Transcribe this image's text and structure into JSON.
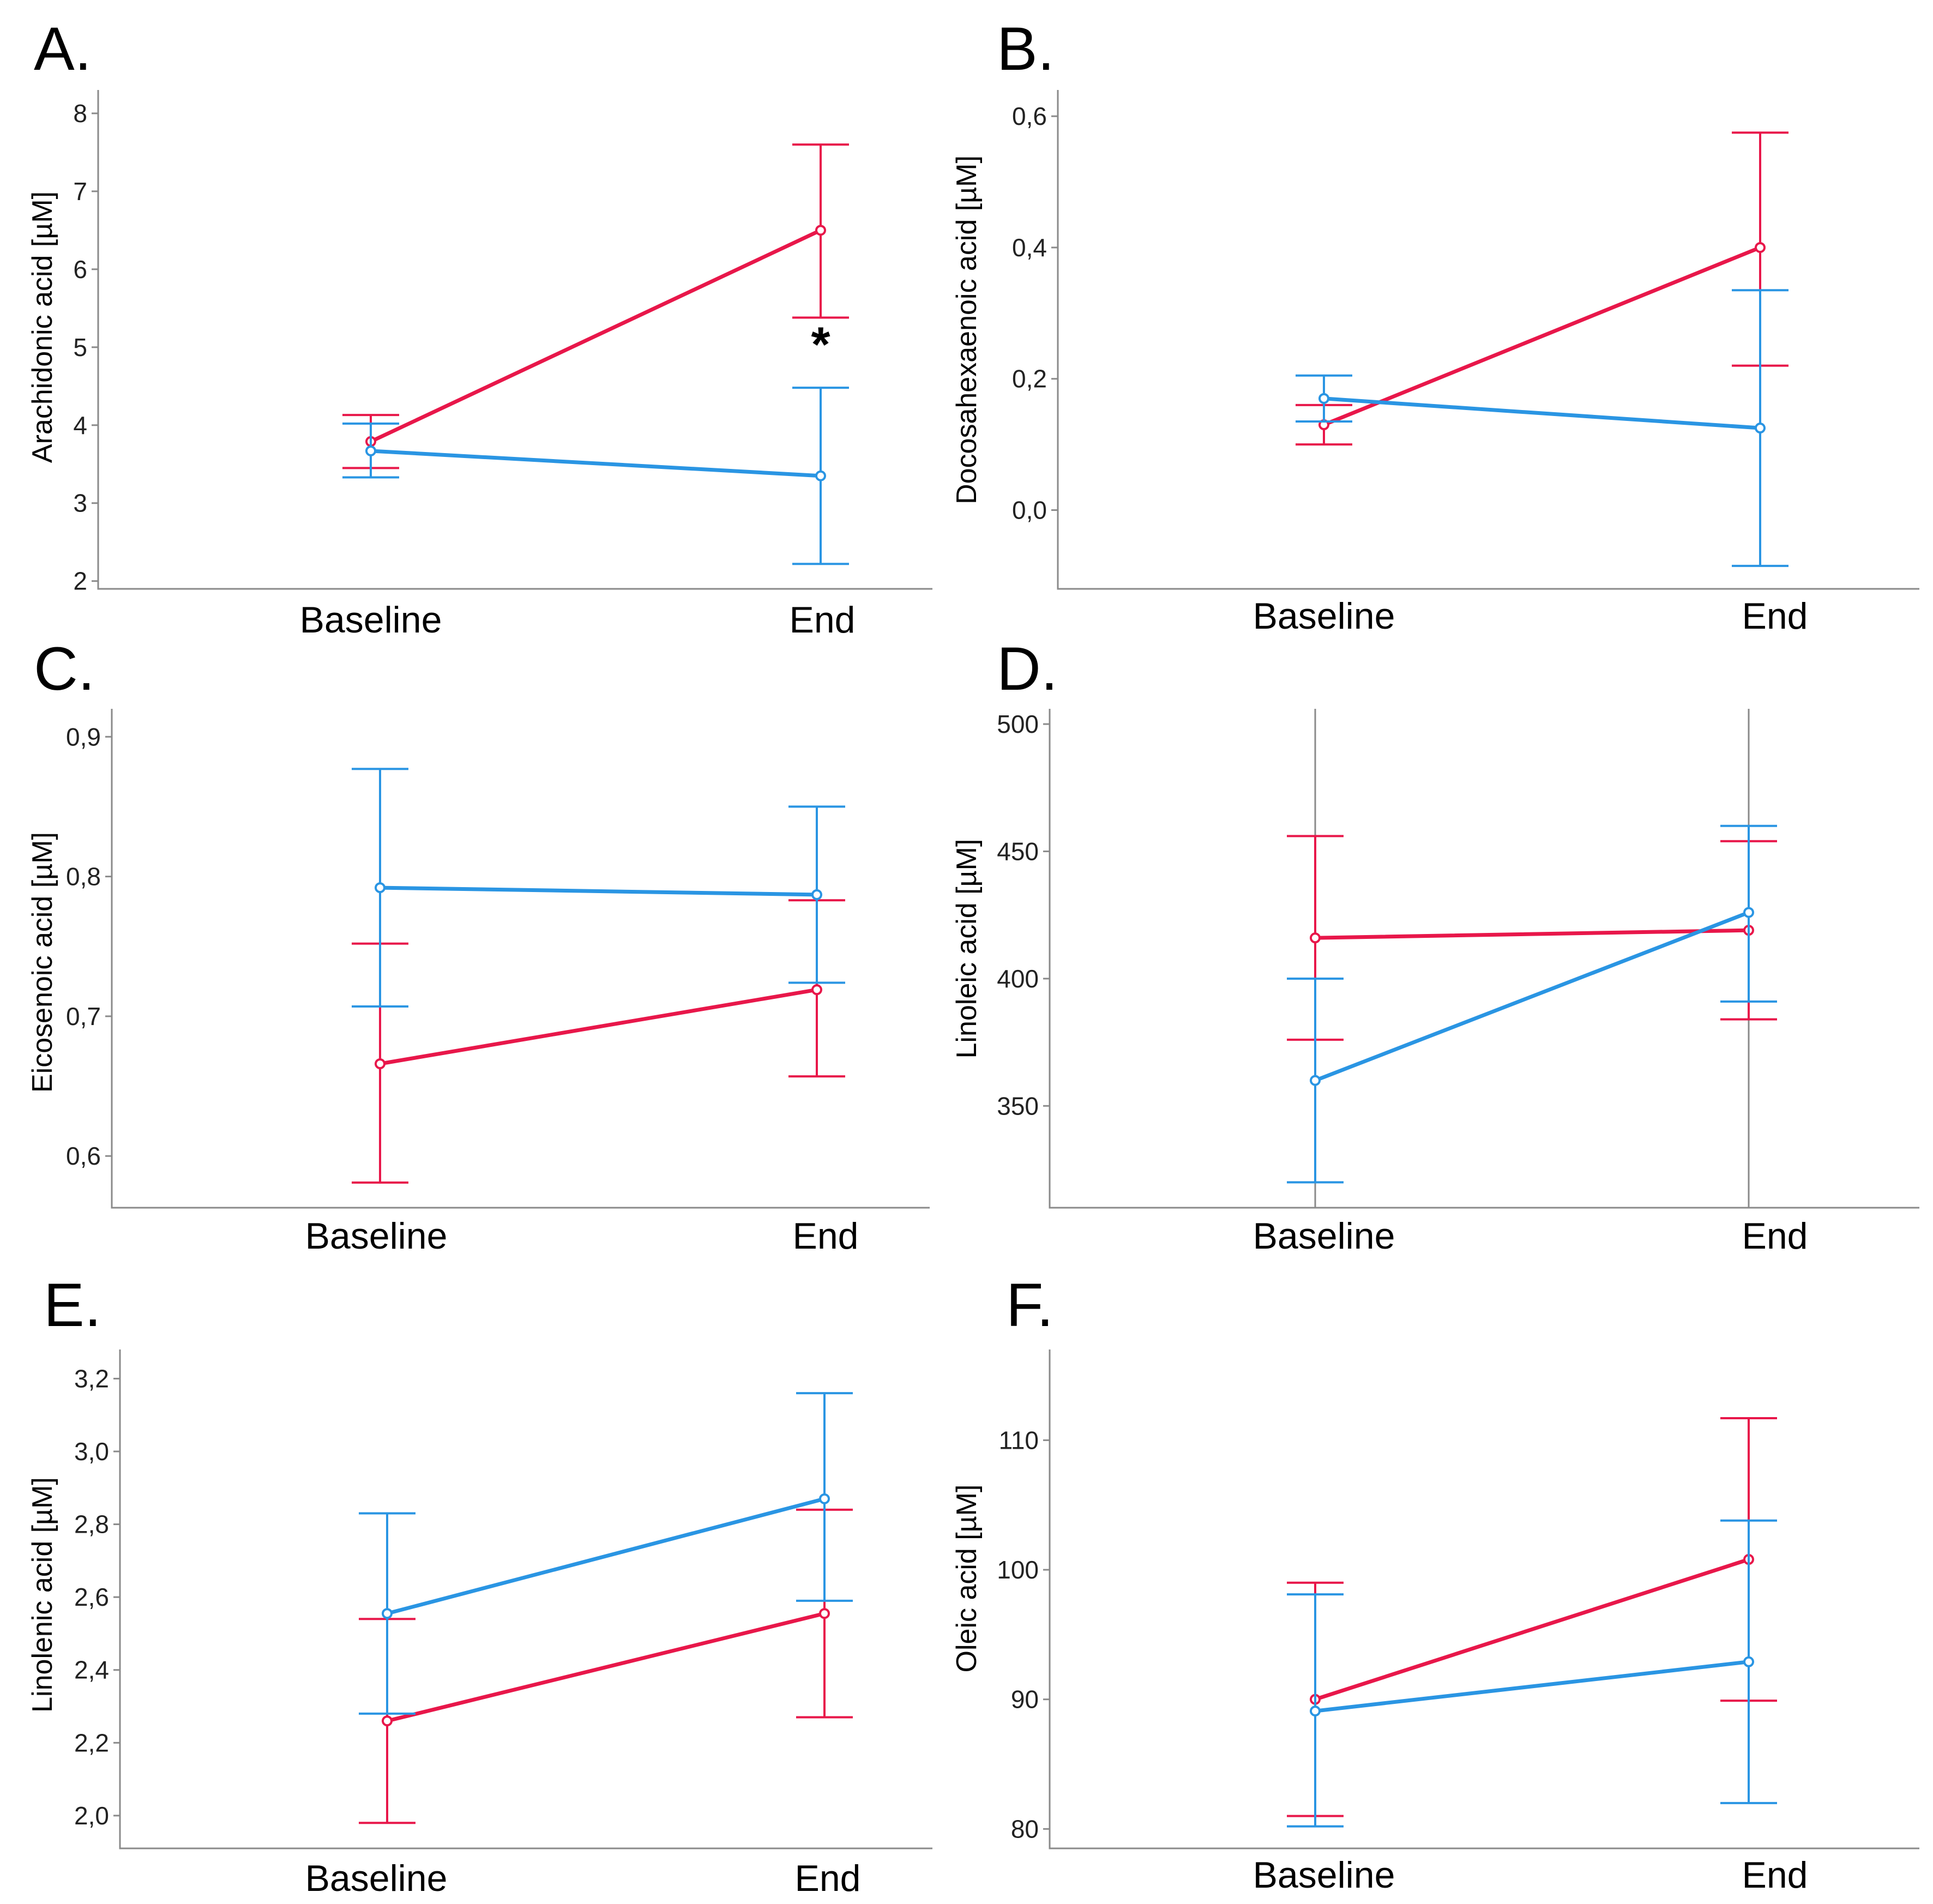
{
  "figure": {
    "colors": {
      "red": "#e8174a",
      "blue": "#2a95e3",
      "axis": "#8a8a8a"
    },
    "series_names": [
      "red-group",
      "blue-group"
    ]
  },
  "chart_data": [
    {
      "panel": "A.",
      "type": "line",
      "ylabel": "Arachidonic acid [µM]",
      "categories": [
        "Baseline",
        "End"
      ],
      "ylim": [
        1.9,
        8.3
      ],
      "yticks": [
        2,
        3,
        4,
        5,
        6,
        7,
        8
      ],
      "ytick_labels": [
        "2",
        "3",
        "4",
        "5",
        "6",
        "7",
        "8"
      ],
      "reference_lines": false,
      "annotation": {
        "text": "*",
        "category": "End",
        "y": 5.1
      },
      "series": [
        {
          "name": "red-group",
          "color": "#e8174a",
          "values": [
            3.79,
            6.5
          ],
          "lower": [
            3.45,
            5.38
          ],
          "upper": [
            4.13,
            7.6
          ]
        },
        {
          "name": "blue-group",
          "color": "#2a95e3",
          "values": [
            3.67,
            3.35
          ],
          "lower": [
            3.33,
            2.22
          ],
          "upper": [
            4.02,
            4.48
          ]
        }
      ]
    },
    {
      "panel": "B.",
      "type": "line",
      "ylabel": "Docosahexaenoic acid [µM]",
      "categories": [
        "Baseline",
        "End"
      ],
      "ylim": [
        -0.12,
        0.64
      ],
      "yticks": [
        0.0,
        0.2,
        0.4,
        0.6
      ],
      "ytick_labels": [
        "0,0",
        "0,2",
        "0,4",
        "0,6"
      ],
      "reference_lines": false,
      "series": [
        {
          "name": "red-group",
          "color": "#e8174a",
          "values": [
            0.13,
            0.4
          ],
          "lower": [
            0.1,
            0.22
          ],
          "upper": [
            0.16,
            0.575
          ]
        },
        {
          "name": "blue-group",
          "color": "#2a95e3",
          "values": [
            0.17,
            0.125
          ],
          "lower": [
            0.135,
            -0.085
          ],
          "upper": [
            0.205,
            0.335
          ]
        }
      ]
    },
    {
      "panel": "C.",
      "type": "line",
      "ylabel": "Eicosenoic acid [µM]",
      "categories": [
        "Baseline",
        "End"
      ],
      "ylim": [
        0.563,
        0.92
      ],
      "yticks": [
        0.6,
        0.7,
        0.8,
        0.9
      ],
      "ytick_labels": [
        "0,6",
        "0,7",
        "0,8",
        "0,9"
      ],
      "reference_lines": false,
      "series": [
        {
          "name": "red-group",
          "color": "#e8174a",
          "values": [
            0.666,
            0.719
          ],
          "lower": [
            0.581,
            0.657
          ],
          "upper": [
            0.752,
            0.783
          ]
        },
        {
          "name": "blue-group",
          "color": "#2a95e3",
          "values": [
            0.792,
            0.787
          ],
          "lower": [
            0.707,
            0.724
          ],
          "upper": [
            0.877,
            0.85
          ]
        }
      ]
    },
    {
      "panel": "D.",
      "type": "line",
      "ylabel": "Linoleic acid [µM]",
      "categories": [
        "Baseline",
        "End"
      ],
      "ylim": [
        310,
        506
      ],
      "yticks": [
        350,
        400,
        450,
        500
      ],
      "ytick_labels": [
        "350",
        "400",
        "450",
        "500"
      ],
      "reference_lines": true,
      "series": [
        {
          "name": "red-group",
          "color": "#e8174a",
          "values": [
            416,
            419
          ],
          "lower": [
            376,
            384
          ],
          "upper": [
            456,
            454
          ]
        },
        {
          "name": "blue-group",
          "color": "#2a95e3",
          "values": [
            360,
            426
          ],
          "lower": [
            320,
            391
          ],
          "upper": [
            400,
            460
          ]
        }
      ]
    },
    {
      "panel": "E.",
      "type": "line",
      "ylabel": "Linolenic acid [µM]",
      "categories": [
        "Baseline",
        "End"
      ],
      "ylim": [
        1.91,
        3.28
      ],
      "yticks": [
        2.0,
        2.2,
        2.4,
        2.6,
        2.8,
        3.0,
        3.2
      ],
      "ytick_labels": [
        "2,0",
        "2,2",
        "2,4",
        "2,6",
        "2,8",
        "3,0",
        "3,2"
      ],
      "reference_lines": false,
      "series": [
        {
          "name": "red-group",
          "color": "#e8174a",
          "values": [
            2.26,
            2.555
          ],
          "lower": [
            1.98,
            2.27
          ],
          "upper": [
            2.54,
            2.84
          ]
        },
        {
          "name": "blue-group",
          "color": "#2a95e3",
          "values": [
            2.555,
            2.87
          ],
          "lower": [
            2.28,
            2.59
          ],
          "upper": [
            2.83,
            3.16
          ]
        }
      ]
    },
    {
      "panel": "F.",
      "type": "line",
      "ylabel": "Oleic acid [µM]",
      "categories": [
        "Baseline",
        "End"
      ],
      "ylim": [
        78.5,
        117
      ],
      "yticks": [
        80,
        90,
        100,
        110
      ],
      "ytick_labels": [
        "80",
        "90",
        "100",
        "110"
      ],
      "reference_lines": false,
      "series": [
        {
          "name": "red-group",
          "color": "#e8174a",
          "values": [
            90.0,
            100.8
          ],
          "lower": [
            81.0,
            89.9
          ],
          "upper": [
            99.0,
            111.7
          ]
        },
        {
          "name": "blue-group",
          "color": "#2a95e3",
          "values": [
            89.1,
            92.9
          ],
          "lower": [
            80.2,
            82.0
          ],
          "upper": [
            98.1,
            103.8
          ]
        }
      ]
    }
  ]
}
